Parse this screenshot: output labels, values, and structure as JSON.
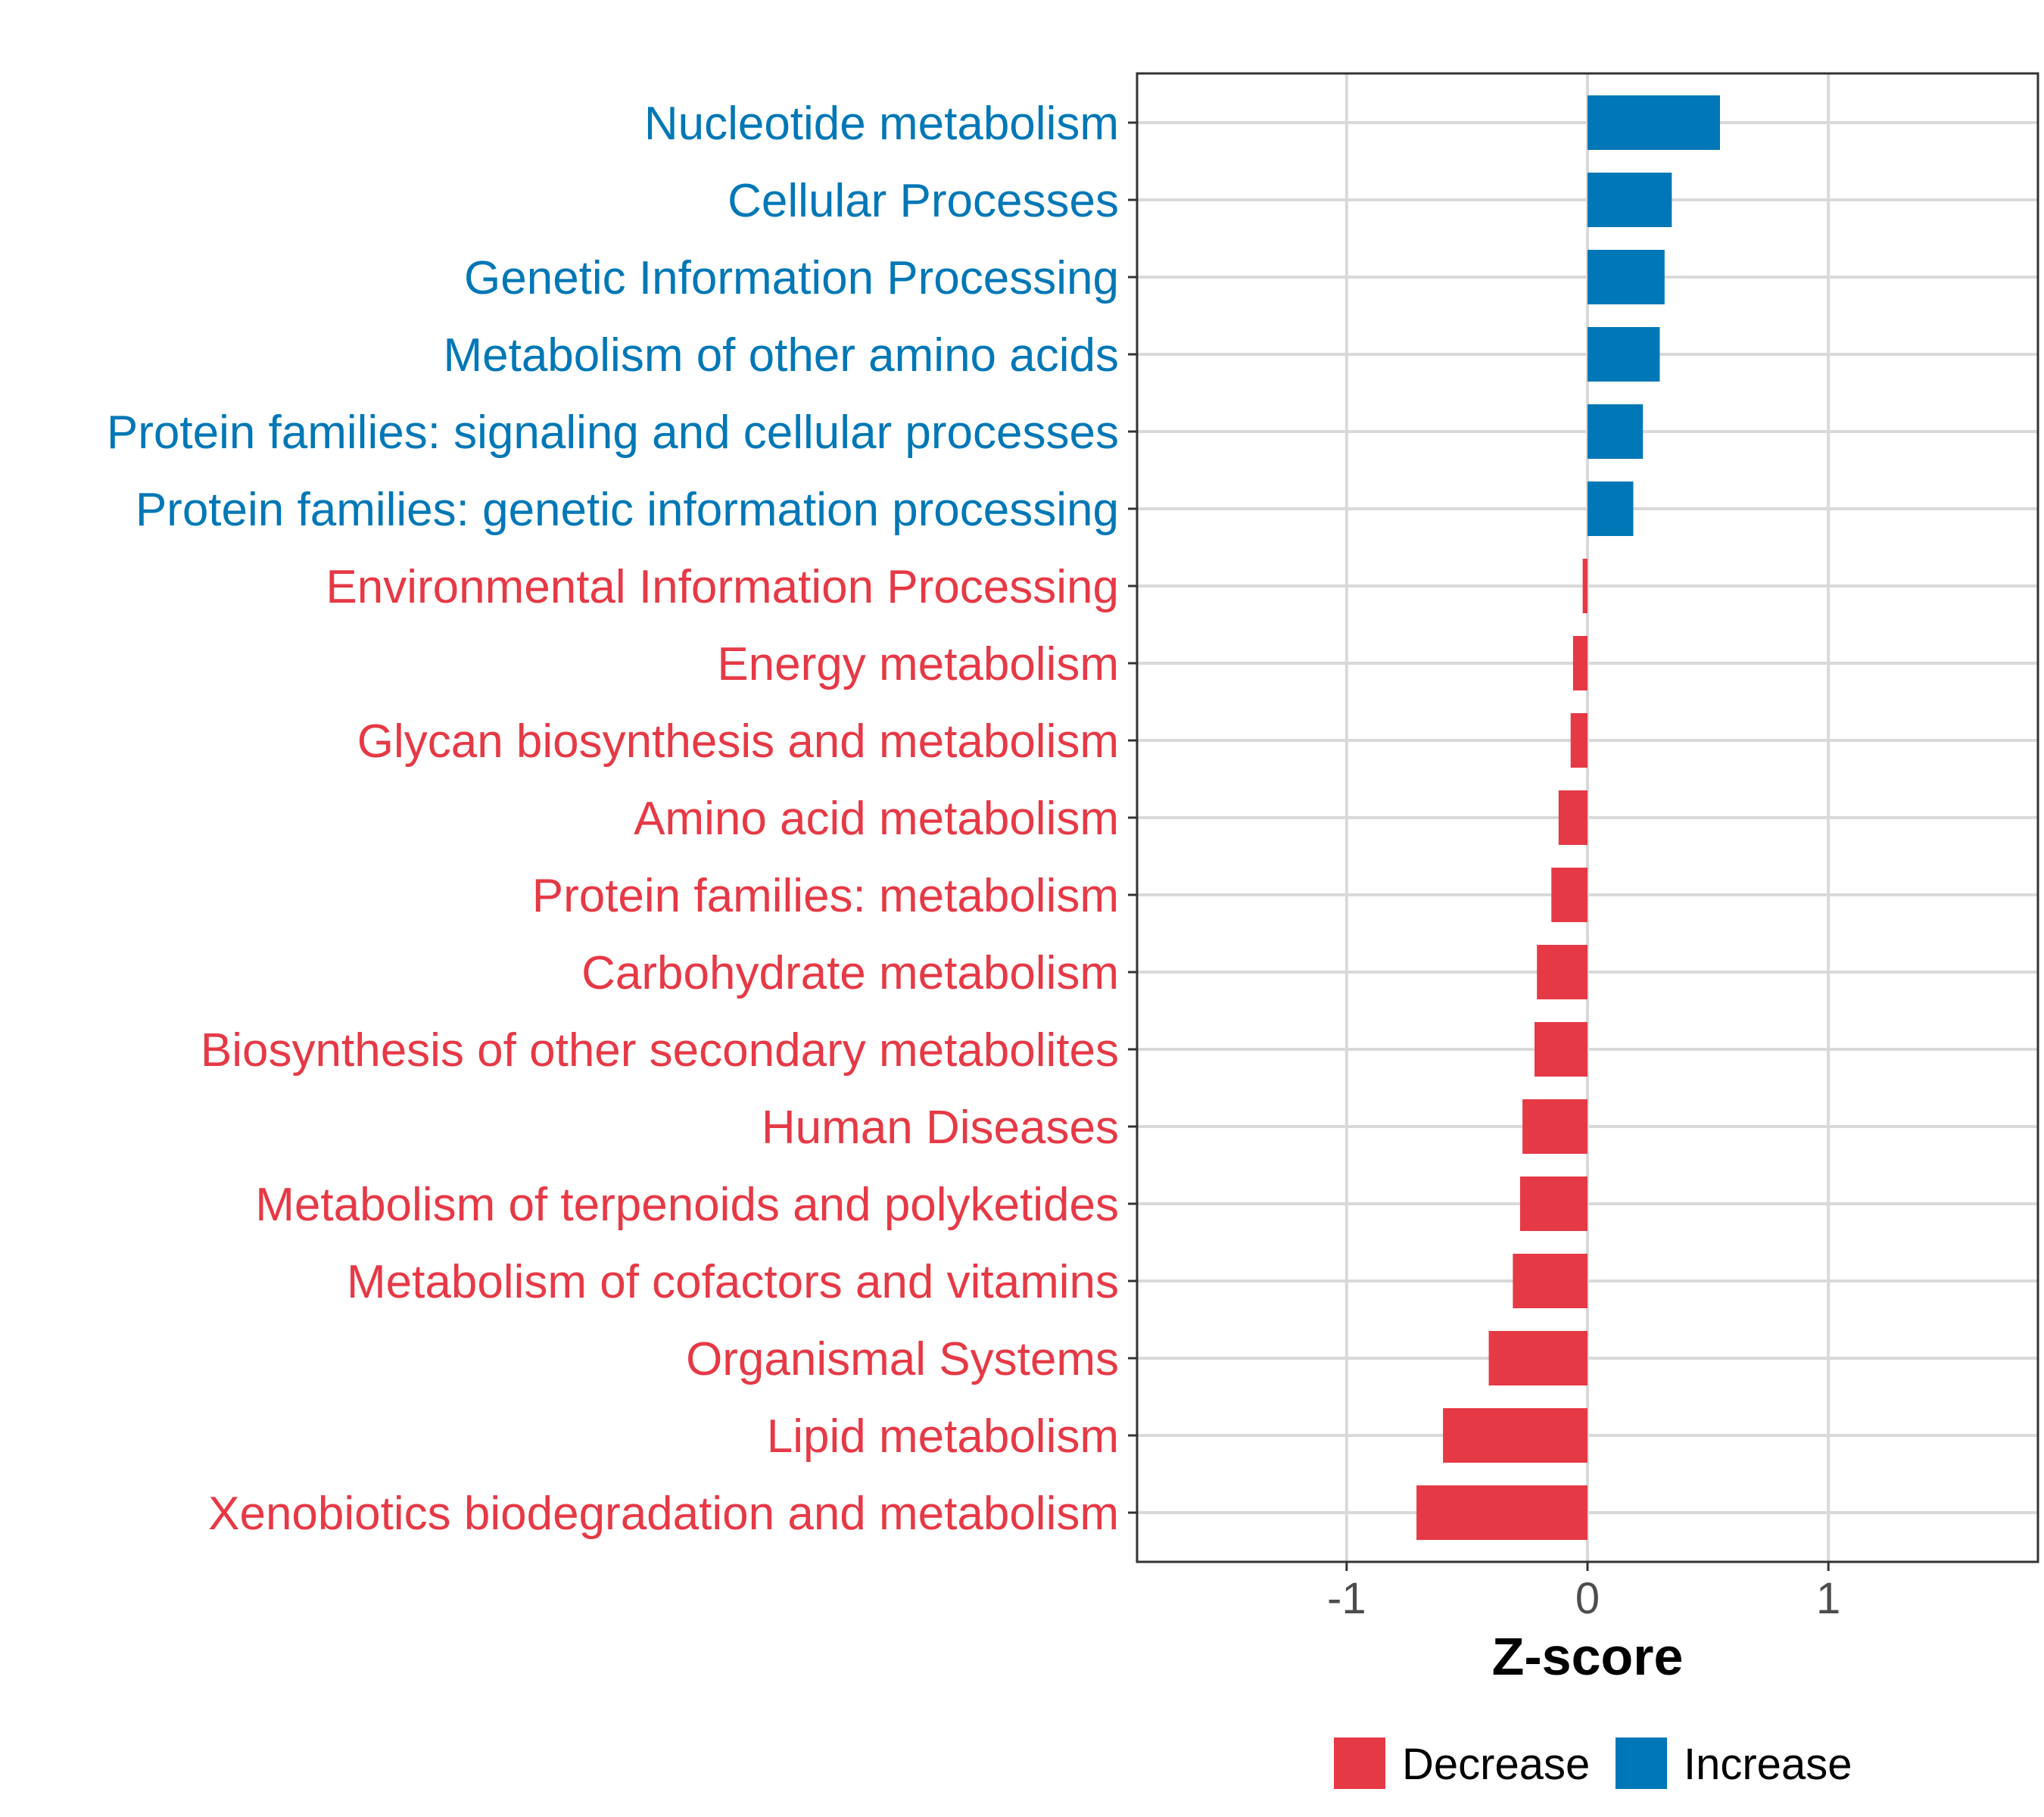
{
  "chart_data": {
    "type": "bar",
    "orientation": "horizontal",
    "xlabel": "Z-score",
    "xlim": [
      -1.87,
      1.87
    ],
    "xticks": [
      -1,
      0,
      1
    ],
    "xtick_labels": [
      "-1",
      "0",
      "1"
    ],
    "grid": true,
    "legend_position": "bottom",
    "colors": {
      "Decrease": "#e63946",
      "Increase": "#0077b6"
    },
    "legend": [
      {
        "name": "Decrease",
        "color": "#e63946"
      },
      {
        "name": "Increase",
        "color": "#0077b6"
      }
    ],
    "categories": [
      "Nucleotide metabolism",
      "Cellular Processes",
      "Genetic Information Processing",
      "Metabolism of other amino acids",
      "Protein families: signaling and cellular processes",
      "Protein families: genetic information processing",
      "Environmental Information Processing",
      "Energy metabolism",
      "Glycan biosynthesis and metabolism",
      "Amino acid metabolism",
      "Protein families: metabolism",
      "Carbohydrate metabolism",
      "Biosynthesis of other secondary metabolites",
      "Human Diseases",
      "Metabolism of terpenoids and polyketides",
      "Metabolism of cofactors and vitamins",
      "Organismal Systems",
      "Lipid metabolism",
      "Xenobiotics biodegradation and metabolism"
    ],
    "values": [
      0.55,
      0.35,
      0.32,
      0.3,
      0.23,
      0.19,
      -0.02,
      -0.06,
      -0.07,
      -0.12,
      -0.15,
      -0.21,
      -0.22,
      -0.27,
      -0.28,
      -0.31,
      -0.41,
      -0.6,
      -0.71
    ],
    "groups": [
      "Increase",
      "Increase",
      "Increase",
      "Increase",
      "Increase",
      "Increase",
      "Decrease",
      "Decrease",
      "Decrease",
      "Decrease",
      "Decrease",
      "Decrease",
      "Decrease",
      "Decrease",
      "Decrease",
      "Decrease",
      "Decrease",
      "Decrease",
      "Decrease"
    ]
  }
}
